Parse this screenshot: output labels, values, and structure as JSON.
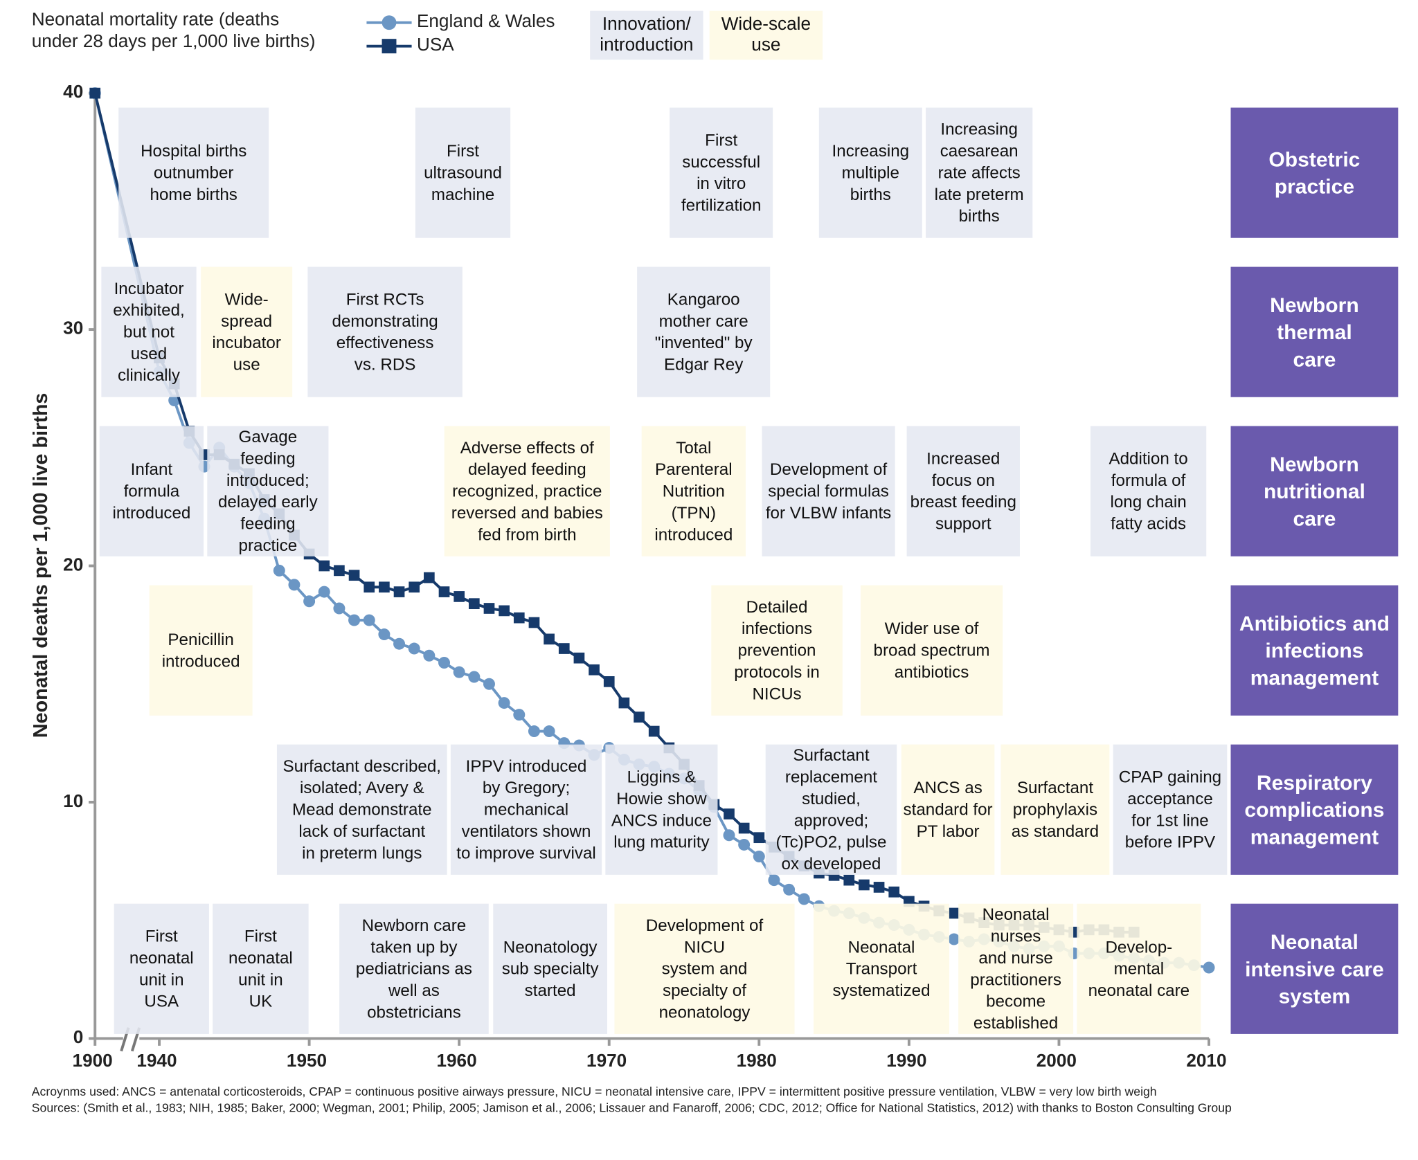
{
  "legend": {
    "title": "Neonatal mortality rate (deaths\nunder 28 days per 1,000 live births)",
    "innovation": "Innovation/\nintroduction",
    "widescale": "Wide-scale\nuse"
  },
  "colors": {
    "england_wales": "#6b96c4",
    "usa": "#163a6b",
    "innovation": "#e5e8f1",
    "widescale": "#fefae4",
    "category": "#6a5aad"
  },
  "categories": [
    "Obstetric\npractice",
    "Newborn\nthermal\ncare",
    "Newborn\nnutritional\ncare",
    "Antibiotics and\ninfections\nmanagement",
    "Respiratory\ncomplications\nmanagement",
    "Neonatal\nintensive care\nsystem"
  ],
  "events": [
    {
      "row": 0,
      "type": "innovation",
      "year_span": [
        1942,
        1952
      ],
      "text": "Hospital births\noutnumber\nhome births"
    },
    {
      "row": 0,
      "type": "innovation",
      "year_span": [
        1957,
        1963
      ],
      "text": "First\nultrasound\nmachine"
    },
    {
      "row": 0,
      "type": "innovation",
      "year_span": [
        1974,
        1981
      ],
      "text": "First\nsuccessful\nin vitro\nfertilization"
    },
    {
      "row": 0,
      "type": "innovation",
      "year_span": [
        1984,
        1991
      ],
      "text": "Increasing\nmultiple\nbirths"
    },
    {
      "row": 0,
      "type": "innovation",
      "year_span": [
        1991,
        1998
      ],
      "text": "Increasing\ncaesarean\nrate affects\nlate preterm\nbirths"
    },
    {
      "row": 1,
      "type": "innovation",
      "year_span": [
        1900,
        1942
      ],
      "text": "Incubator\nexhibited,\nbut not\nused\nclinically"
    },
    {
      "row": 1,
      "type": "widescale",
      "year_span": [
        1943,
        1949
      ],
      "text": "Wide-\nspread\nincubator\nuse"
    },
    {
      "row": 1,
      "type": "innovation",
      "year_span": [
        1950,
        1960
      ],
      "text": "First RCTs\ndemonstrating\neffectiveness\nvs. RDS"
    },
    {
      "row": 1,
      "type": "innovation",
      "year_span": [
        1972,
        1981
      ],
      "text": "Kangaroo\nmother care\n\"invented\" by\nEdgar Rey"
    },
    {
      "row": 2,
      "type": "innovation",
      "year_span": [
        1900,
        1943
      ],
      "text": "Infant\nformula\nintroduced"
    },
    {
      "row": 2,
      "type": "innovation",
      "year_span": [
        1943,
        1951
      ],
      "text": "Gavage\nfeeding\nintroduced;\ndelayed early\nfeeding\npractice"
    },
    {
      "row": 2,
      "type": "widescale",
      "year_span": [
        1959,
        1970
      ],
      "text": "Adverse effects of\ndelayed feeding\nrecognized, practice\nreversed and babies\nfed from birth"
    },
    {
      "row": 2,
      "type": "widescale",
      "year_span": [
        1972,
        1979
      ],
      "text": "Total\nParenteral\nNutrition (TPN)\nintroduced"
    },
    {
      "row": 2,
      "type": "innovation",
      "year_span": [
        1980,
        1989
      ],
      "text": "Development of\nspecial formulas\nfor VLBW infants"
    },
    {
      "row": 2,
      "type": "innovation",
      "year_span": [
        1990,
        1997
      ],
      "text": "Increased\nfocus on\nbreast feeding\nsupport"
    },
    {
      "row": 2,
      "type": "innovation",
      "year_span": [
        2002,
        2010
      ],
      "text": "Addition to\nformula of\nlong chain\nfatty acids"
    },
    {
      "row": 3,
      "type": "widescale",
      "year_span": [
        1940,
        1946
      ],
      "text": "Penicillin\nintroduced"
    },
    {
      "row": 3,
      "type": "widescale",
      "year_span": [
        1977,
        1986
      ],
      "text": "Detailed\ninfections\nprevention\nprotocols in\nNICUs"
    },
    {
      "row": 3,
      "type": "widescale",
      "year_span": [
        1987,
        1996
      ],
      "text": "Wider use of\nbroad spectrum\nantibiotics"
    },
    {
      "row": 4,
      "type": "innovation",
      "year_span": [
        1948,
        1959
      ],
      "text": "Surfactant described,\nisolated; Avery &\nMead demonstrate\nlack of surfactant\nin preterm lungs"
    },
    {
      "row": 4,
      "type": "innovation",
      "year_span": [
        1959,
        1969
      ],
      "text": "IPPV introduced\nby Gregory;\nmechanical\nventilators shown\nto improve survival"
    },
    {
      "row": 4,
      "type": "innovation",
      "year_span": [
        1970,
        1977
      ],
      "text": "Liggins &\nHowie show\nANCS induce\nlung maturity"
    },
    {
      "row": 4,
      "type": "innovation",
      "year_span": [
        1980,
        1989
      ],
      "text": "Surfactant\nreplacement\nstudied,\napproved;\n(Tc)PO2, pulse\nox developed"
    },
    {
      "row": 4,
      "type": "widescale",
      "year_span": [
        1989,
        1996
      ],
      "text": "ANCS as\nstandard for\nPT labor"
    },
    {
      "row": 4,
      "type": "widescale",
      "year_span": [
        1996,
        2003
      ],
      "text": "Surfactant\nprophylaxis\nas standard"
    },
    {
      "row": 4,
      "type": "innovation",
      "year_span": [
        2003,
        2011
      ],
      "text": "CPAP gaining\nacceptance\nfor 1st line\nbefore IPPV"
    },
    {
      "row": 5,
      "type": "innovation",
      "year_span": [
        1900,
        1943
      ],
      "text": "First\nneonatal\nunit in\nUSA"
    },
    {
      "row": 5,
      "type": "innovation",
      "year_span": [
        1944,
        1950
      ],
      "text": "First\nneonatal\nunit in\nUK"
    },
    {
      "row": 5,
      "type": "innovation",
      "year_span": [
        1952,
        1962
      ],
      "text": "Newborn care\ntaken up by\npediatricians as\nwell as\nobstetricians"
    },
    {
      "row": 5,
      "type": "innovation",
      "year_span": [
        1962,
        1970
      ],
      "text": "Neonatology\nsub specialty\nstarted"
    },
    {
      "row": 5,
      "type": "widescale",
      "year_span": [
        1970,
        1982
      ],
      "text": "Development of\nNICU\nsystem and\nspecialty of\nneonatology"
    },
    {
      "row": 5,
      "type": "widescale",
      "year_span": [
        1984,
        1993
      ],
      "text": "Neonatal\nTransport\nsystematized"
    },
    {
      "row": 5,
      "type": "widescale",
      "year_span": [
        1993,
        2001
      ],
      "text": "Neonatal\nnurses\nand nurse\npractitioners\nbecome\nestablished"
    },
    {
      "row": 5,
      "type": "widescale",
      "year_span": [
        2001,
        2009
      ],
      "text": "Develop-\nmental\nneonatal care"
    }
  ],
  "chart_data": {
    "type": "line",
    "ylabel": "Neonatal deaths per 1,000 live births",
    "ylim": [
      0,
      40
    ],
    "yticks": [
      40,
      30,
      20,
      10,
      0
    ],
    "xticks": [
      1900,
      1940,
      1950,
      1960,
      1970,
      1980,
      1990,
      2000,
      2010
    ],
    "x_axis_break": [
      1900,
      1940
    ],
    "legend_placement": "top",
    "series": [
      {
        "name": "England & Wales",
        "marker": "circle",
        "x": [
          1900,
          1940,
          1941,
          1942,
          1943,
          1944,
          1945,
          1946,
          1947,
          1948,
          1949,
          1950,
          1951,
          1952,
          1953,
          1954,
          1955,
          1956,
          1957,
          1958,
          1959,
          1960,
          1961,
          1962,
          1963,
          1964,
          1965,
          1966,
          1967,
          1968,
          1969,
          1970,
          1971,
          1972,
          1973,
          1974,
          1975,
          1976,
          1977,
          1978,
          1979,
          1980,
          1981,
          1982,
          1983,
          1984,
          1985,
          1986,
          1987,
          1988,
          1989,
          1990,
          1991,
          1992,
          1993,
          1994,
          1995,
          1996,
          1997,
          1998,
          1999,
          2000,
          2001,
          2002,
          2003,
          2004,
          2005,
          2006,
          2007,
          2008,
          2009,
          2010
        ],
        "y": [
          40,
          28.2,
          27.0,
          25.2,
          24.2,
          25.0,
          24.2,
          23.5,
          22.0,
          19.8,
          19.2,
          18.5,
          18.9,
          18.2,
          17.7,
          17.7,
          17.1,
          16.7,
          16.5,
          16.2,
          15.9,
          15.5,
          15.3,
          15.0,
          14.2,
          13.7,
          13.0,
          13.0,
          12.5,
          12.4,
          12.0,
          12.3,
          11.8,
          11.6,
          11.5,
          11.2,
          11.0,
          10.5,
          9.8,
          8.6,
          8.2,
          7.7,
          6.7,
          6.3,
          5.9,
          5.6,
          5.4,
          5.3,
          5.1,
          4.9,
          4.8,
          4.6,
          4.4,
          4.3,
          4.2,
          4.1,
          4.2,
          4.1,
          3.9,
          3.8,
          3.9,
          3.9,
          3.6,
          3.6,
          3.6,
          3.5,
          3.4,
          3.3,
          3.2,
          3.2,
          3.1,
          3.0
        ]
      },
      {
        "name": "USA",
        "marker": "square",
        "x": [
          1900,
          1940,
          1941,
          1942,
          1943,
          1944,
          1945,
          1946,
          1947,
          1948,
          1949,
          1950,
          1951,
          1952,
          1953,
          1954,
          1955,
          1956,
          1957,
          1958,
          1959,
          1960,
          1961,
          1962,
          1963,
          1964,
          1965,
          1966,
          1967,
          1968,
          1969,
          1970,
          1971,
          1972,
          1973,
          1974,
          1975,
          1976,
          1977,
          1978,
          1979,
          1980,
          1981,
          1982,
          1983,
          1984,
          1985,
          1986,
          1987,
          1988,
          1989,
          1990,
          1991,
          1992,
          1993,
          1994,
          1995,
          1996,
          1997,
          1998,
          1999,
          2000,
          2001,
          2002,
          2003,
          2004,
          2005
        ],
        "y": [
          40,
          28.8,
          27.7,
          25.7,
          24.7,
          24.7,
          24.3,
          23.9,
          22.8,
          22.2,
          21.3,
          20.5,
          20.0,
          19.8,
          19.6,
          19.1,
          19.1,
          18.9,
          19.1,
          19.5,
          18.9,
          18.7,
          18.4,
          18.2,
          18.1,
          17.8,
          17.6,
          16.9,
          16.5,
          16.1,
          15.6,
          15.1,
          14.2,
          13.6,
          13.0,
          12.3,
          11.6,
          10.7,
          9.9,
          9.5,
          8.9,
          8.5,
          8.1,
          7.7,
          7.3,
          7.0,
          6.9,
          6.7,
          6.5,
          6.4,
          6.2,
          5.8,
          5.6,
          5.4,
          5.3,
          5.1,
          4.9,
          4.8,
          4.8,
          4.8,
          4.7,
          4.6,
          4.5,
          4.6,
          4.6,
          4.5,
          4.5
        ]
      }
    ]
  },
  "footer": {
    "acronyms": "Acroynms used: ANCS = antenatal corticosteroids, CPAP = continuous positive airways pressure, NICU = neonatal intensive care, IPPV = intermittent positive pressure ventilation, VLBW = very low birth weigh",
    "sources": "Sources: (Smith et al., 1983; NIH, 1985; Baker, 2000; Wegman, 2001; Philip, 2005; Jamison et al., 2006; Lissauer and Fanaroff, 2006; CDC, 2012; Office for National Statistics, 2012) with thanks to Boston Consulting Group"
  }
}
